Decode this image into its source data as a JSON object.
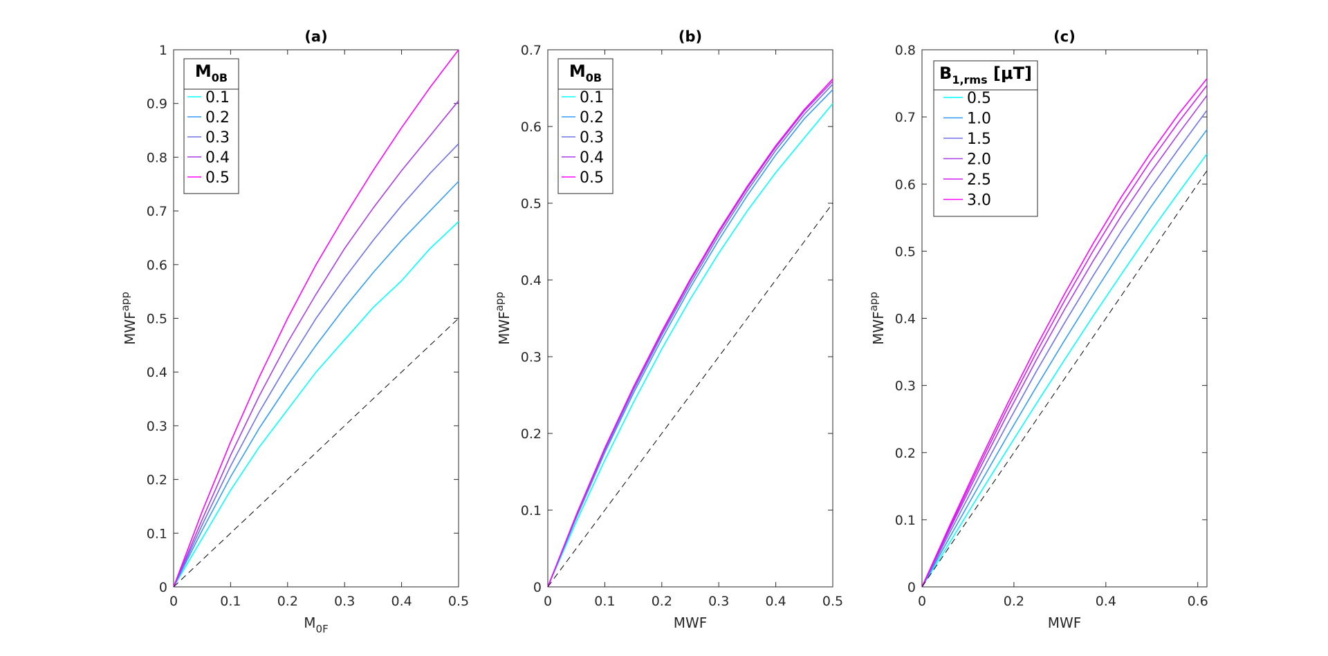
{
  "chart_data": [
    {
      "type": "line",
      "title": "(a)",
      "xlabel": {
        "main": "M",
        "sub": "0F"
      },
      "ylabel": {
        "main": "MWF",
        "sup": "app"
      },
      "xlim": [
        0,
        0.5
      ],
      "ylim": [
        0,
        1
      ],
      "xticks": [
        "0",
        "0.1",
        "0.2",
        "0.3",
        "0.4",
        "0.5"
      ],
      "yticks": [
        "0",
        "0.1",
        "0.2",
        "0.3",
        "0.4",
        "0.5",
        "0.6",
        "0.7",
        "0.8",
        "0.9",
        "1"
      ],
      "xtick_values": [
        0,
        0.1,
        0.2,
        0.3,
        0.4,
        0.5
      ],
      "ytick_values": [
        0,
        0.1,
        0.2,
        0.3,
        0.4,
        0.5,
        0.6,
        0.7,
        0.8,
        0.9,
        1
      ],
      "legend": {
        "title_main": "M",
        "title_sub": "0B",
        "placement": "top-left"
      },
      "x": [
        0,
        0.05,
        0.1,
        0.15,
        0.2,
        0.25,
        0.3,
        0.35,
        0.4,
        0.45,
        0.5
      ],
      "series": [
        {
          "name": "0.1",
          "color": "#00ffff",
          "values": [
            0,
            0.09,
            0.18,
            0.26,
            0.33,
            0.4,
            0.46,
            0.52,
            0.57,
            0.63,
            0.68
          ]
        },
        {
          "name": "0.2",
          "color": "#339bf5",
          "values": [
            0,
            0.105,
            0.205,
            0.295,
            0.375,
            0.45,
            0.52,
            0.585,
            0.645,
            0.7,
            0.755
          ]
        },
        {
          "name": "0.3",
          "color": "#6e71e8",
          "values": [
            0,
            0.115,
            0.225,
            0.325,
            0.415,
            0.5,
            0.575,
            0.645,
            0.71,
            0.77,
            0.825
          ]
        },
        {
          "name": "0.4",
          "color": "#a83be6",
          "values": [
            0,
            0.125,
            0.245,
            0.355,
            0.455,
            0.545,
            0.63,
            0.705,
            0.775,
            0.84,
            0.905
          ]
        },
        {
          "name": "0.5",
          "color": "#ff00ff",
          "values": [
            0,
            0.14,
            0.27,
            0.39,
            0.5,
            0.6,
            0.69,
            0.775,
            0.855,
            0.93,
            1.0
          ]
        },
        {
          "name": "",
          "color": "#000000",
          "dashed": true,
          "values": [
            0,
            0.05,
            0.1,
            0.15,
            0.2,
            0.25,
            0.3,
            0.35,
            0.4,
            0.45,
            0.5
          ]
        }
      ]
    },
    {
      "type": "line",
      "title": "(b)",
      "xlabel": {
        "main": "MWF",
        "sub": ""
      },
      "ylabel": {
        "main": "MWF",
        "sup": "app"
      },
      "xlim": [
        0,
        0.5
      ],
      "ylim": [
        0,
        0.7
      ],
      "xticks": [
        "0",
        "0.1",
        "0.2",
        "0.3",
        "0.4",
        "0.5"
      ],
      "yticks": [
        "0",
        "0.1",
        "0.2",
        "0.3",
        "0.4",
        "0.5",
        "0.6",
        "0.7"
      ],
      "xtick_values": [
        0,
        0.1,
        0.2,
        0.3,
        0.4,
        0.5
      ],
      "ytick_values": [
        0,
        0.1,
        0.2,
        0.3,
        0.4,
        0.5,
        0.6,
        0.7
      ],
      "legend": {
        "title_main": "M",
        "title_sub": "0B",
        "placement": "top-left"
      },
      "x": [
        0,
        0.05,
        0.1,
        0.15,
        0.2,
        0.25,
        0.3,
        0.35,
        0.4,
        0.45,
        0.5
      ],
      "series": [
        {
          "name": "0.1",
          "color": "#00ffff",
          "values": [
            0,
            0.085,
            0.165,
            0.24,
            0.31,
            0.375,
            0.435,
            0.49,
            0.54,
            0.585,
            0.63
          ]
        },
        {
          "name": "0.2",
          "color": "#339bf5",
          "values": [
            0,
            0.09,
            0.175,
            0.252,
            0.323,
            0.39,
            0.452,
            0.51,
            0.563,
            0.61,
            0.648
          ]
        },
        {
          "name": "0.3",
          "color": "#6e71e8",
          "values": [
            0,
            0.092,
            0.178,
            0.256,
            0.328,
            0.395,
            0.458,
            0.516,
            0.569,
            0.616,
            0.655
          ]
        },
        {
          "name": "0.4",
          "color": "#a83be6",
          "values": [
            0,
            0.093,
            0.18,
            0.259,
            0.331,
            0.399,
            0.462,
            0.52,
            0.573,
            0.62,
            0.659
          ]
        },
        {
          "name": "0.5",
          "color": "#ff00ff",
          "values": [
            0,
            0.094,
            0.181,
            0.26,
            0.333,
            0.401,
            0.464,
            0.522,
            0.575,
            0.622,
            0.662
          ]
        },
        {
          "name": "",
          "color": "#000000",
          "dashed": true,
          "values": [
            0,
            0.05,
            0.1,
            0.15,
            0.2,
            0.25,
            0.3,
            0.35,
            0.4,
            0.45,
            0.5
          ]
        }
      ]
    },
    {
      "type": "line",
      "title": "(c)",
      "xlabel": {
        "main": "MWF",
        "sub": ""
      },
      "ylabel": {
        "main": "MWF",
        "sup": "app"
      },
      "xlim": [
        0,
        0.62
      ],
      "ylim": [
        0,
        0.8
      ],
      "xticks": [
        "0",
        "0.2",
        "0.4",
        "0.6"
      ],
      "yticks": [
        "0",
        "0.1",
        "0.2",
        "0.3",
        "0.4",
        "0.5",
        "0.6",
        "0.7",
        "0.8"
      ],
      "xtick_values": [
        0,
        0.2,
        0.4,
        0.6
      ],
      "ytick_values": [
        0,
        0.1,
        0.2,
        0.3,
        0.4,
        0.5,
        0.6,
        0.7,
        0.8
      ],
      "legend": {
        "title_main": "B",
        "title_sub": "1,rms",
        "title_suffix": " [μT]",
        "placement": "top-left"
      },
      "x": [
        0,
        0.062,
        0.124,
        0.186,
        0.248,
        0.31,
        0.372,
        0.434,
        0.496,
        0.558,
        0.62
      ],
      "series": [
        {
          "name": "0.5",
          "color": "#00ffff",
          "values": [
            0,
            0.068,
            0.137,
            0.205,
            0.272,
            0.338,
            0.403,
            0.466,
            0.528,
            0.587,
            0.645
          ]
        },
        {
          "name": "1.0",
          "color": "#339bf5",
          "values": [
            0,
            0.076,
            0.151,
            0.225,
            0.297,
            0.367,
            0.435,
            0.501,
            0.564,
            0.624,
            0.681
          ]
        },
        {
          "name": "1.5",
          "color": "#6e71e8",
          "values": [
            0,
            0.083,
            0.164,
            0.243,
            0.32,
            0.393,
            0.463,
            0.53,
            0.593,
            0.652,
            0.71
          ]
        },
        {
          "name": "2.0",
          "color": "#a83be6",
          "values": [
            0,
            0.088,
            0.174,
            0.257,
            0.337,
            0.413,
            0.485,
            0.553,
            0.616,
            0.675,
            0.732
          ]
        },
        {
          "name": "2.5",
          "color": "#d11ff0",
          "values": [
            0,
            0.091,
            0.18,
            0.266,
            0.348,
            0.426,
            0.5,
            0.569,
            0.633,
            0.692,
            0.747
          ]
        },
        {
          "name": "3.0",
          "color": "#ff00ff",
          "values": [
            0,
            0.094,
            0.185,
            0.273,
            0.357,
            0.436,
            0.511,
            0.581,
            0.645,
            0.704,
            0.757
          ]
        },
        {
          "name": "",
          "color": "#000000",
          "dashed": true,
          "values": [
            0,
            0.062,
            0.124,
            0.186,
            0.248,
            0.31,
            0.372,
            0.434,
            0.496,
            0.558,
            0.62
          ]
        }
      ]
    }
  ]
}
